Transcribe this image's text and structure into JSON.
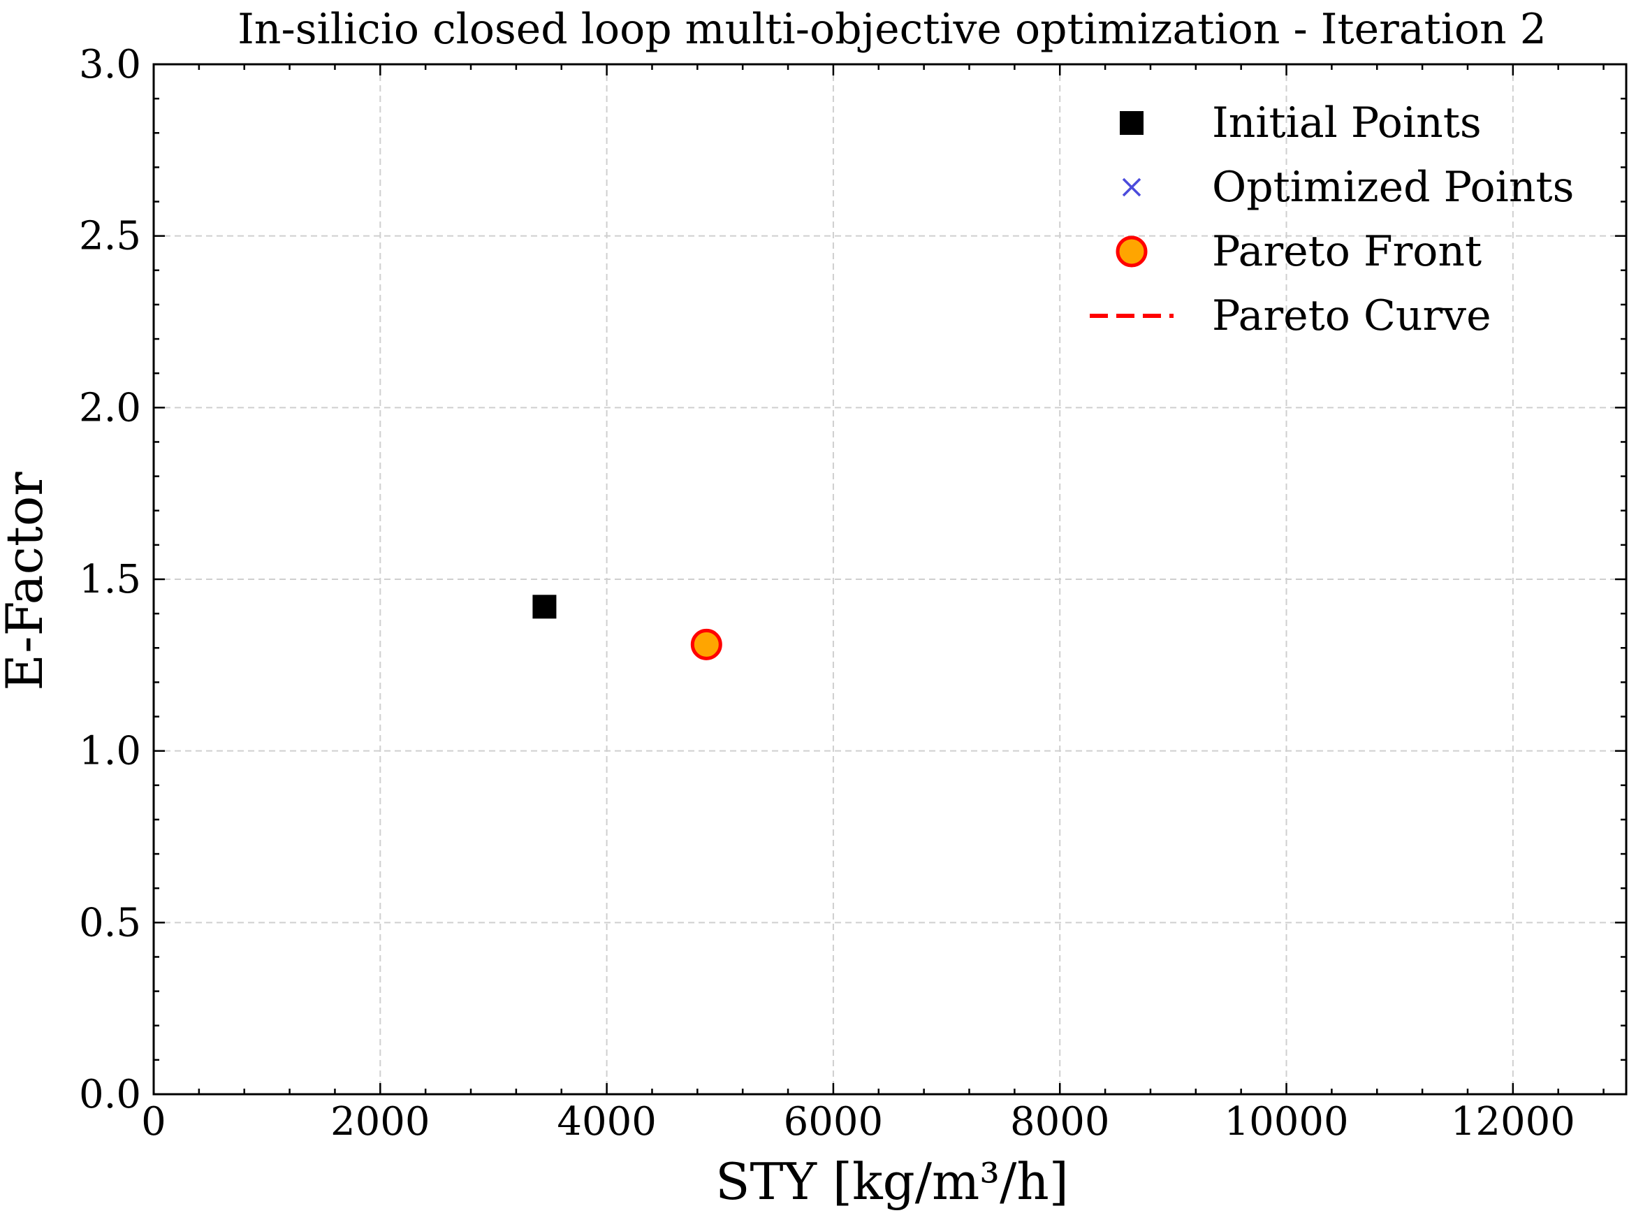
{
  "chart_data": {
    "type": "scatter",
    "title": "In-silicio closed loop multi-objective optimization - Iteration 2",
    "xlabel": "STY [kg/m³/h]",
    "ylabel": "E-Factor",
    "xlim": [
      0,
      13000
    ],
    "ylim": [
      0,
      3.0
    ],
    "x_ticks": [
      0,
      2000,
      4000,
      6000,
      8000,
      10000,
      12000
    ],
    "x_tick_labels": [
      "0",
      "2000",
      "4000",
      "6000",
      "8000",
      "10000",
      "12000"
    ],
    "y_ticks": [
      0.0,
      0.5,
      1.0,
      1.5,
      2.0,
      2.5,
      3.0
    ],
    "y_tick_labels": [
      "0.0",
      "0.5",
      "1.0",
      "1.5",
      "2.0",
      "2.5",
      "3.0"
    ],
    "grid": true,
    "legend_position": "top-right",
    "series": [
      {
        "name": "Initial Points",
        "marker": "square",
        "color": "#000000",
        "points": [
          {
            "x": 3450,
            "y": 1.42
          }
        ]
      },
      {
        "name": "Optimized Points",
        "marker": "x",
        "color": "#4b4bdc",
        "points": [
          {
            "x": 4880,
            "y": 1.31
          }
        ]
      },
      {
        "name": "Pareto Front",
        "marker": "circle",
        "color": "#ffa500",
        "edge_color": "#ff0000",
        "points": [
          {
            "x": 4880,
            "y": 1.31
          }
        ]
      },
      {
        "name": "Pareto Curve",
        "marker": "dashed-line",
        "color": "#ff0000",
        "points": []
      }
    ]
  }
}
